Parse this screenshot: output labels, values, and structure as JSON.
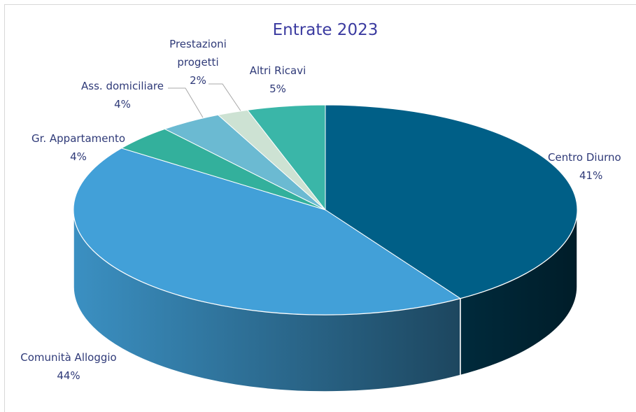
{
  "chart_data": {
    "type": "pie",
    "title": "Entrate 2023",
    "categories": [
      "Centro Diurno",
      "Comunità Alloggio",
      "Gr. Appartamento",
      "Ass. domiciliare",
      "Prestazioni progetti",
      "Altri Ricavi"
    ],
    "values": [
      41,
      44,
      4,
      4,
      2,
      5
    ],
    "value_labels": [
      "41%",
      "44%",
      "4%",
      "4%",
      "2%",
      "5%"
    ],
    "colors": [
      "#005f87",
      "#42a0d8",
      "#33b09c",
      "#6bbad2",
      "#cde2d3",
      "#3ab6a8"
    ]
  }
}
